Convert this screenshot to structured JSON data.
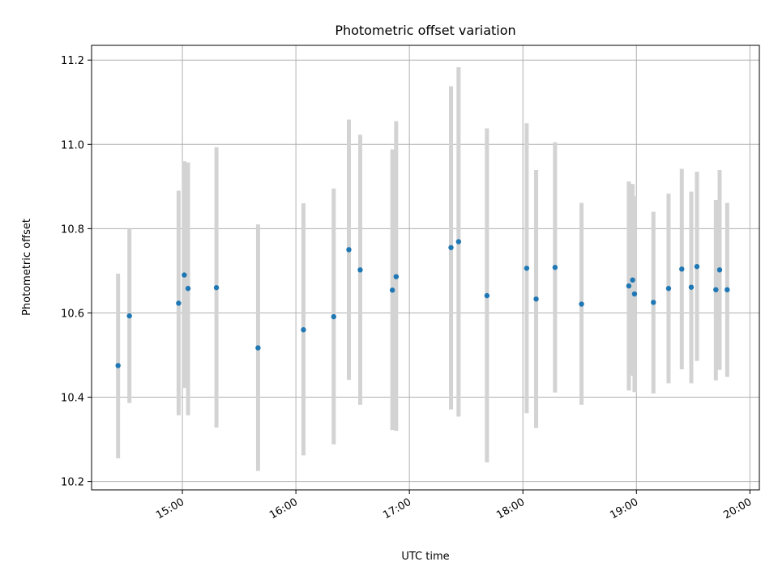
{
  "chart_data": {
    "type": "scatter",
    "title": "Photometric offset variation",
    "xlabel": "UTC time",
    "ylabel": "Photometric offset",
    "grid": true,
    "legend": "none",
    "x_range_minutes": [
      852,
      1205
    ],
    "xlim": [
      "14:12",
      "20:05"
    ],
    "ylim": [
      10.18,
      11.235
    ],
    "x_ticks": [
      "15:00",
      "16:00",
      "17:00",
      "18:00",
      "19:00",
      "20:00"
    ],
    "y_ticks": [
      "10.2",
      "10.4",
      "10.6",
      "10.8",
      "11.0",
      "11.2"
    ],
    "colors": {
      "point": "#1f77b4",
      "errorbar": "#d3d3d3",
      "grid": "#b0b0b0"
    },
    "points": [
      {
        "t": "14:26",
        "y": 10.475,
        "lo": 10.255,
        "hi": 10.693
      },
      {
        "t": "14:32",
        "y": 10.593,
        "lo": 10.386,
        "hi": 10.8
      },
      {
        "t": "14:58",
        "y": 10.623,
        "lo": 10.357,
        "hi": 10.89
      },
      {
        "t": "15:01",
        "y": 10.69,
        "lo": 10.422,
        "hi": 10.96
      },
      {
        "t": "15:03",
        "y": 10.658,
        "lo": 10.357,
        "hi": 10.957
      },
      {
        "t": "15:18",
        "y": 10.66,
        "lo": 10.328,
        "hi": 10.993
      },
      {
        "t": "15:40",
        "y": 10.517,
        "lo": 10.225,
        "hi": 10.81
      },
      {
        "t": "16:04",
        "y": 10.56,
        "lo": 10.262,
        "hi": 10.86
      },
      {
        "t": "16:20",
        "y": 10.591,
        "lo": 10.288,
        "hi": 10.895
      },
      {
        "t": "16:28",
        "y": 10.75,
        "lo": 10.441,
        "hi": 11.059
      },
      {
        "t": "16:34",
        "y": 10.702,
        "lo": 10.382,
        "hi": 11.023
      },
      {
        "t": "16:51",
        "y": 10.654,
        "lo": 10.322,
        "hi": 10.988
      },
      {
        "t": "16:53",
        "y": 10.686,
        "lo": 10.32,
        "hi": 11.055
      },
      {
        "t": "17:22",
        "y": 10.755,
        "lo": 10.371,
        "hi": 11.138
      },
      {
        "t": "17:26",
        "y": 10.769,
        "lo": 10.354,
        "hi": 11.183
      },
      {
        "t": "17:41",
        "y": 10.641,
        "lo": 10.245,
        "hi": 11.038
      },
      {
        "t": "18:02",
        "y": 10.706,
        "lo": 10.362,
        "hi": 11.05
      },
      {
        "t": "18:07",
        "y": 10.633,
        "lo": 10.327,
        "hi": 10.939
      },
      {
        "t": "18:17",
        "y": 10.708,
        "lo": 10.411,
        "hi": 11.005
      },
      {
        "t": "18:31",
        "y": 10.621,
        "lo": 10.382,
        "hi": 10.861
      },
      {
        "t": "18:56",
        "y": 10.664,
        "lo": 10.416,
        "hi": 10.912
      },
      {
        "t": "18:58",
        "y": 10.678,
        "lo": 10.451,
        "hi": 10.906
      },
      {
        "t": "18:59",
        "y": 10.645,
        "lo": 10.412,
        "hi": 10.877
      },
      {
        "t": "19:09",
        "y": 10.625,
        "lo": 10.409,
        "hi": 10.84
      },
      {
        "t": "19:17",
        "y": 10.658,
        "lo": 10.433,
        "hi": 10.883
      },
      {
        "t": "19:24",
        "y": 10.704,
        "lo": 10.466,
        "hi": 10.942
      },
      {
        "t": "19:29",
        "y": 10.661,
        "lo": 10.433,
        "hi": 10.888
      },
      {
        "t": "19:32",
        "y": 10.71,
        "lo": 10.486,
        "hi": 10.935
      },
      {
        "t": "19:42",
        "y": 10.655,
        "lo": 10.44,
        "hi": 10.868
      },
      {
        "t": "19:44",
        "y": 10.702,
        "lo": 10.465,
        "hi": 10.939
      },
      {
        "t": "19:48",
        "y": 10.655,
        "lo": 10.448,
        "hi": 10.861
      }
    ]
  }
}
